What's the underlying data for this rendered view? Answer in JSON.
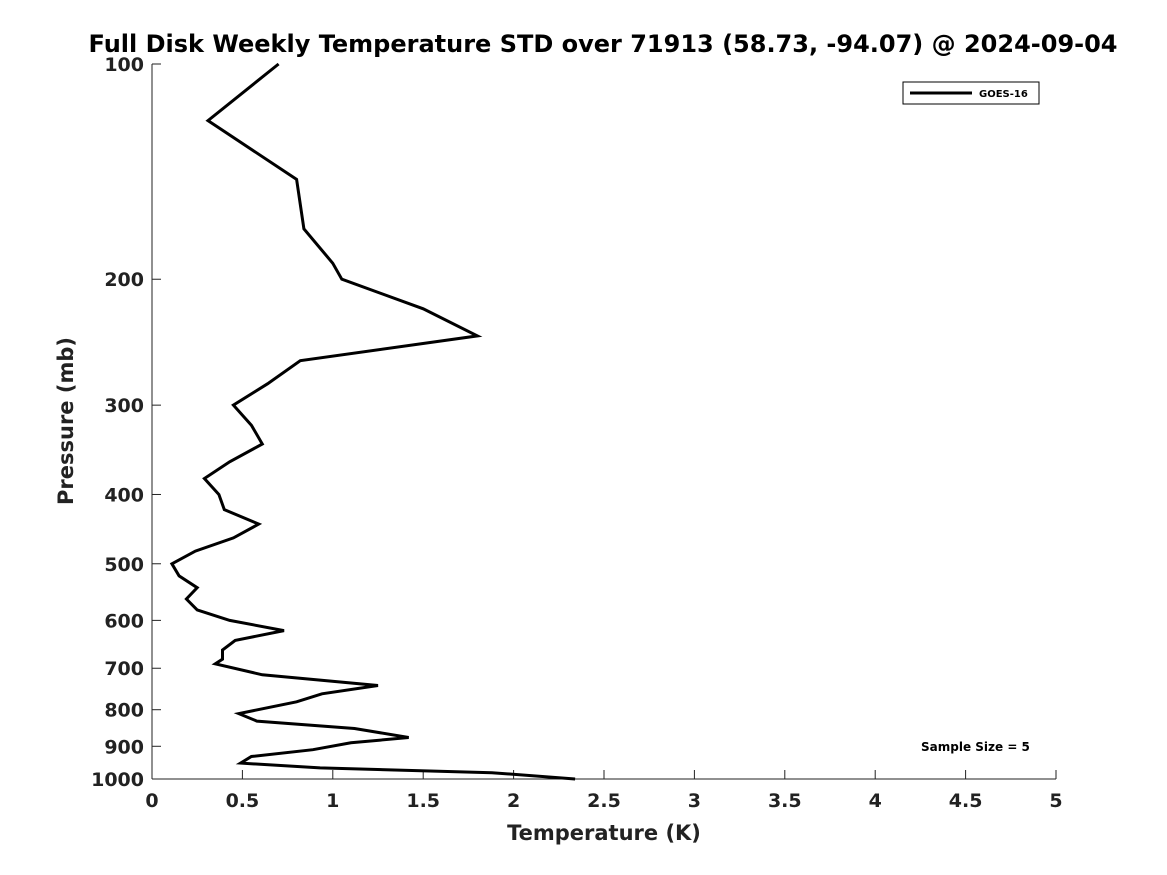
{
  "chart_data": {
    "type": "line",
    "title": "Full Disk Weekly Temperature STD over 71913 (58.73, -94.07) @ 2024-09-04",
    "xlabel": "Temperature (K)",
    "ylabel": "Pressure (mb)",
    "xlim": [
      0,
      5
    ],
    "ylim": [
      100,
      1000
    ],
    "y_scale": "log",
    "y_reversed": true,
    "x_ticks": [
      0,
      0.5,
      1,
      1.5,
      2,
      2.5,
      3,
      3.5,
      4,
      4.5,
      5
    ],
    "x_tick_labels": [
      "0",
      "0.5",
      "1",
      "1.5",
      "2",
      "2.5",
      "3",
      "3.5",
      "4",
      "4.5",
      "5"
    ],
    "y_ticks": [
      100,
      200,
      300,
      400,
      500,
      600,
      700,
      800,
      900,
      1000
    ],
    "y_tick_labels": [
      "100",
      "200",
      "300",
      "400",
      "500",
      "600",
      "700",
      "800",
      "900",
      "1000"
    ],
    "grid": false,
    "legend_position": "top-right",
    "annotation": "Sample Size = 5",
    "series": [
      {
        "name": "GOES-16",
        "color": "#000000",
        "points": [
          [
            0.7,
            100
          ],
          [
            0.31,
            120
          ],
          [
            0.8,
            145
          ],
          [
            0.84,
            170
          ],
          [
            1.0,
            190
          ],
          [
            1.05,
            200
          ],
          [
            1.5,
            220
          ],
          [
            1.8,
            240
          ],
          [
            0.82,
            260
          ],
          [
            0.64,
            280
          ],
          [
            0.45,
            300
          ],
          [
            0.55,
            320
          ],
          [
            0.61,
            340
          ],
          [
            0.43,
            360
          ],
          [
            0.29,
            380
          ],
          [
            0.37,
            400
          ],
          [
            0.4,
            420
          ],
          [
            0.59,
            440
          ],
          [
            0.45,
            460
          ],
          [
            0.24,
            480
          ],
          [
            0.11,
            500
          ],
          [
            0.15,
            520
          ],
          [
            0.25,
            540
          ],
          [
            0.19,
            560
          ],
          [
            0.25,
            580
          ],
          [
            0.43,
            600
          ],
          [
            0.73,
            620
          ],
          [
            0.46,
            640
          ],
          [
            0.39,
            660
          ],
          [
            0.39,
            680
          ],
          [
            0.35,
            690
          ],
          [
            0.61,
            715
          ],
          [
            1.25,
            740
          ],
          [
            0.94,
            760
          ],
          [
            0.8,
            780
          ],
          [
            0.48,
            810
          ],
          [
            0.58,
            830
          ],
          [
            1.12,
            850
          ],
          [
            1.42,
            875
          ],
          [
            1.1,
            890
          ],
          [
            0.89,
            910
          ],
          [
            0.55,
            930
          ],
          [
            0.49,
            950
          ],
          [
            0.93,
            965
          ],
          [
            1.88,
            980
          ],
          [
            2.34,
            1000
          ]
        ]
      }
    ]
  }
}
